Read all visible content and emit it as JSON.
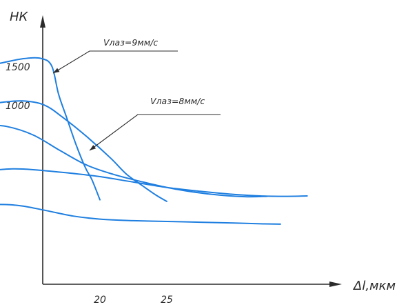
{
  "chart_data": {
    "type": "line",
    "title": "",
    "ylabel": "НК",
    "xlabel": "Δl,мкм",
    "x_ticks": [
      "20",
      "25"
    ],
    "y_ticks": [
      "1500",
      "1000"
    ],
    "grid": false,
    "legend": "none",
    "curve_color": "#1f7fe0",
    "axis_color": "#2b2b2b",
    "annotations": [
      {
        "text": "Vлаз=9мм/с",
        "target_series": 0
      },
      {
        "text": "Vлаз=8мм/с",
        "target_series": 1
      }
    ],
    "series": [
      {
        "points": [
          [
            11.2,
            1500
          ],
          [
            12.6,
            1550
          ],
          [
            14.2,
            1605
          ],
          [
            15.6,
            1610
          ],
          [
            16.4,
            1510
          ],
          [
            16.9,
            1150
          ],
          [
            17.5,
            850
          ],
          [
            18.2,
            500
          ],
          [
            18.9,
            200
          ],
          [
            19.4,
            40
          ],
          [
            20.0,
            -220
          ]
        ]
      },
      {
        "points": [
          [
            11.2,
            1000
          ],
          [
            12.6,
            1040
          ],
          [
            14.2,
            1060
          ],
          [
            15.8,
            1010
          ],
          [
            17.2,
            850
          ],
          [
            19.0,
            600
          ],
          [
            20.8,
            320
          ],
          [
            22.0,
            110
          ],
          [
            23.2,
            -40
          ],
          [
            24.2,
            -160
          ],
          [
            25.0,
            -240
          ]
        ]
      },
      {
        "points": [
          [
            11.2,
            750
          ],
          [
            13.0,
            730
          ],
          [
            15.0,
            620
          ],
          [
            17.0,
            420
          ],
          [
            19.0,
            230
          ],
          [
            21.0,
            110
          ],
          [
            23.0,
            20
          ],
          [
            25.0,
            -60
          ],
          [
            27.0,
            -120
          ],
          [
            29.0,
            -160
          ],
          [
            31.0,
            -180
          ],
          [
            32.5,
            -175
          ]
        ]
      },
      {
        "points": [
          [
            11.2,
            120
          ],
          [
            12.0,
            160
          ],
          [
            13.5,
            180
          ],
          [
            15.0,
            170
          ],
          [
            17.5,
            130
          ],
          [
            20.0,
            80
          ],
          [
            22.5,
            10
          ],
          [
            25.0,
            -60
          ],
          [
            27.5,
            -110
          ],
          [
            30.0,
            -150
          ],
          [
            32.0,
            -170
          ],
          [
            34.0,
            -175
          ],
          [
            35.5,
            -170
          ]
        ]
      },
      {
        "points": [
          [
            11.2,
            -300
          ],
          [
            12.6,
            -280
          ],
          [
            14.2,
            -300
          ],
          [
            16.0,
            -360
          ],
          [
            18.0,
            -430
          ],
          [
            20.0,
            -470
          ],
          [
            22.5,
            -490
          ],
          [
            25.0,
            -500
          ],
          [
            27.5,
            -510
          ],
          [
            30.0,
            -520
          ],
          [
            32.0,
            -530
          ],
          [
            33.5,
            -535
          ]
        ]
      }
    ]
  }
}
